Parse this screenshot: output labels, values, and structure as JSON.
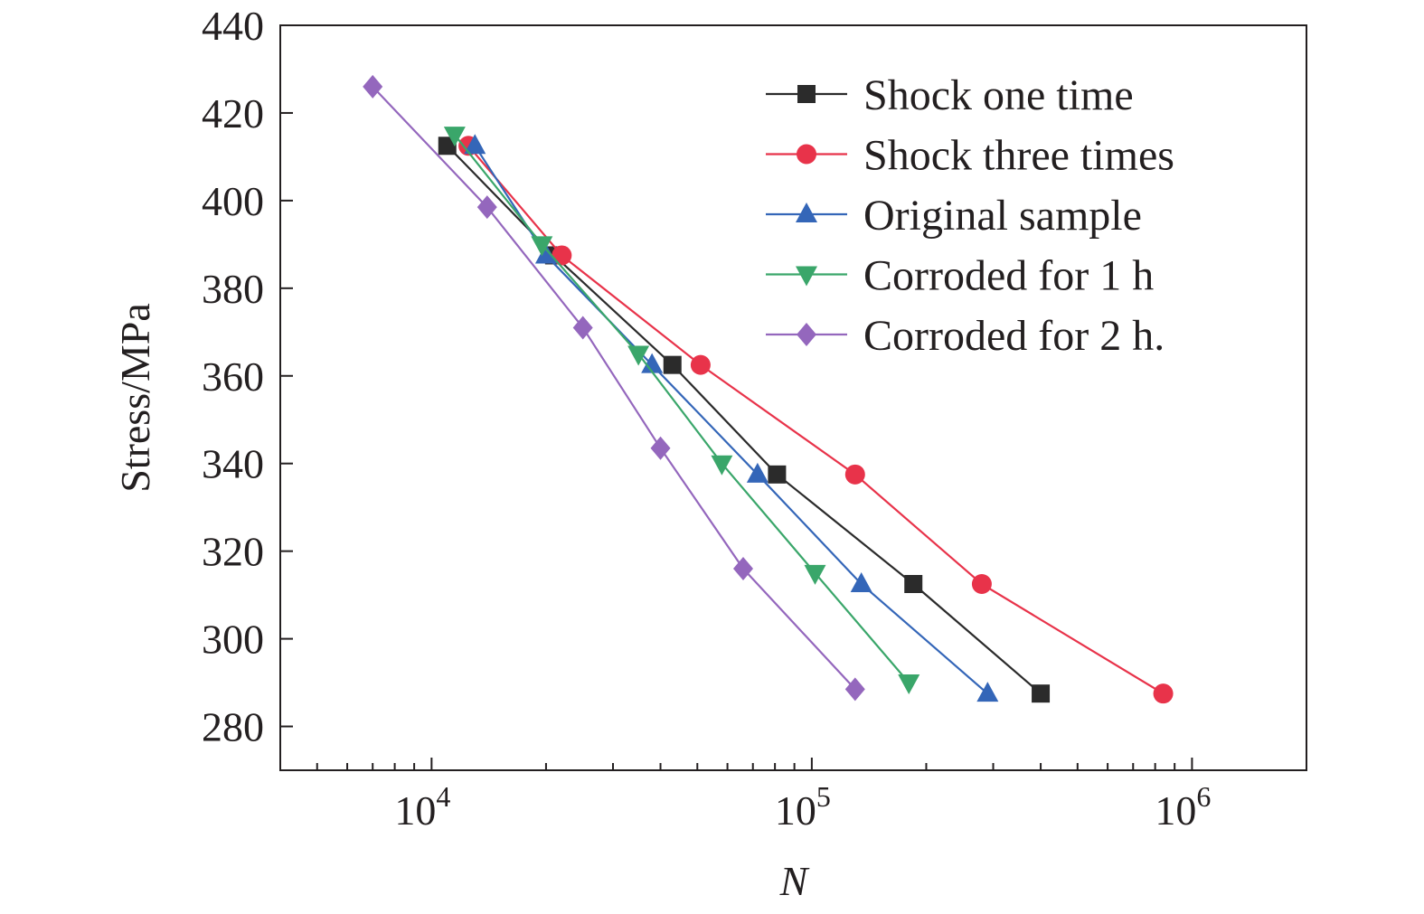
{
  "chart_data": {
    "type": "line",
    "xlabel": "N",
    "ylabel": "Stress/MPa",
    "x_scale": "log",
    "xlim": [
      4000,
      2000000
    ],
    "ylim": [
      270,
      440
    ],
    "x_ticks": [
      {
        "value": 10000,
        "base": "10",
        "exp": "4"
      },
      {
        "value": 100000,
        "base": "10",
        "exp": "5"
      },
      {
        "value": 1000000,
        "base": "10",
        "exp": "6"
      }
    ],
    "y_ticks": [
      280,
      300,
      320,
      340,
      360,
      380,
      400,
      420,
      440
    ],
    "grid": false,
    "legend_position": "top-right",
    "series": [
      {
        "name": "Shock one time",
        "color": "#2b2b2b",
        "marker": "square",
        "points": [
          [
            11000,
            412.5
          ],
          [
            21000,
            387.5
          ],
          [
            43000,
            362.5
          ],
          [
            81000,
            337.5
          ],
          [
            185000,
            312.5
          ],
          [
            400000,
            287.5
          ]
        ]
      },
      {
        "name": "Shock three times",
        "color": "#e8334a",
        "marker": "circle",
        "points": [
          [
            12500,
            412.5
          ],
          [
            22000,
            387.5
          ],
          [
            51000,
            362.5
          ],
          [
            130000,
            337.5
          ],
          [
            280000,
            312.5
          ],
          [
            840000,
            287.5
          ]
        ]
      },
      {
        "name": "Original sample",
        "color": "#3466b8",
        "marker": "triangle-up",
        "points": [
          [
            13000,
            412.5
          ],
          [
            20000,
            387.5
          ],
          [
            38000,
            362.5
          ],
          [
            72000,
            337.5
          ],
          [
            135000,
            312.5
          ],
          [
            290000,
            287.5
          ]
        ]
      },
      {
        "name": "Corroded for 1 h",
        "color": "#3aa66a",
        "marker": "triangle-down",
        "points": [
          [
            11500,
            415
          ],
          [
            19500,
            390
          ],
          [
            35000,
            365
          ],
          [
            58000,
            340
          ],
          [
            102000,
            315
          ],
          [
            180000,
            290
          ]
        ]
      },
      {
        "name": "Corroded for 2 h.",
        "color": "#9467bd",
        "marker": "diamond",
        "points": [
          [
            7000,
            426
          ],
          [
            14000,
            398.5
          ],
          [
            25000,
            371
          ],
          [
            40000,
            343.5
          ],
          [
            66000,
            316
          ],
          [
            130000,
            288.5
          ]
        ]
      }
    ]
  }
}
